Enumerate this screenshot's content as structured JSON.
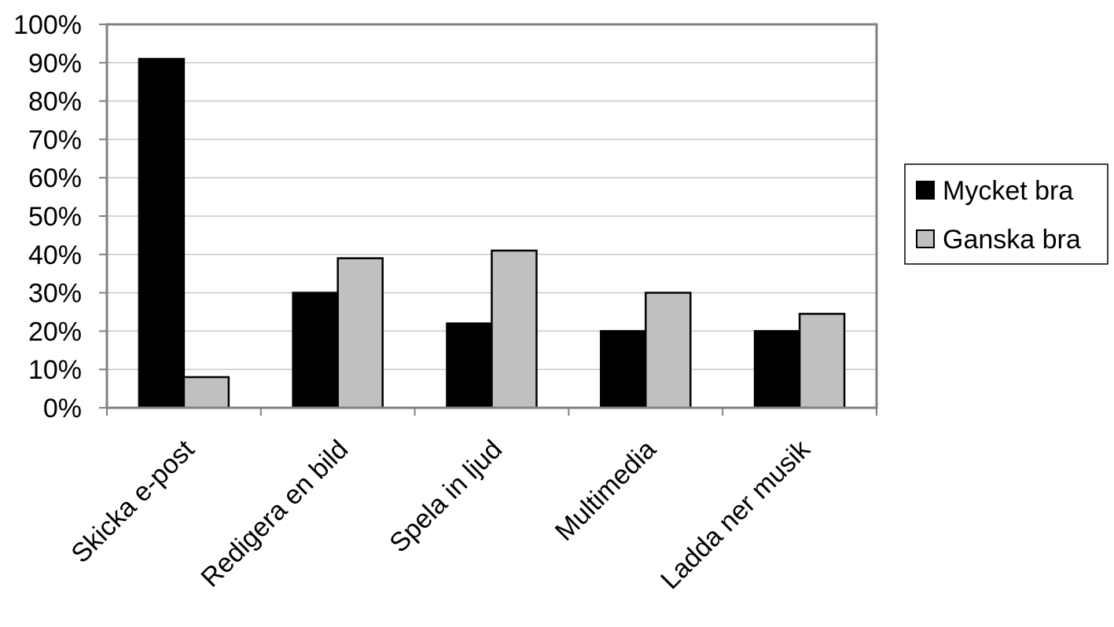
{
  "chart_data": {
    "type": "bar",
    "categories": [
      "Skicka e-post",
      "Redigera en bild",
      "Spela in ljud",
      "Multimedia",
      "Ladda ner musik"
    ],
    "series": [
      {
        "name": "Mycket bra",
        "values": [
          91,
          30,
          22,
          20,
          20
        ],
        "color": "#000000"
      },
      {
        "name": "Ganska bra",
        "values": [
          8,
          39,
          41,
          30,
          24.5
        ],
        "color": "#c0c0c0"
      }
    ],
    "ylim": [
      0,
      100
    ],
    "yticks": [
      "0%",
      "10%",
      "20%",
      "30%",
      "40%",
      "50%",
      "60%",
      "70%",
      "80%",
      "90%",
      "100%"
    ],
    "grid": true,
    "legend_position": "right"
  }
}
